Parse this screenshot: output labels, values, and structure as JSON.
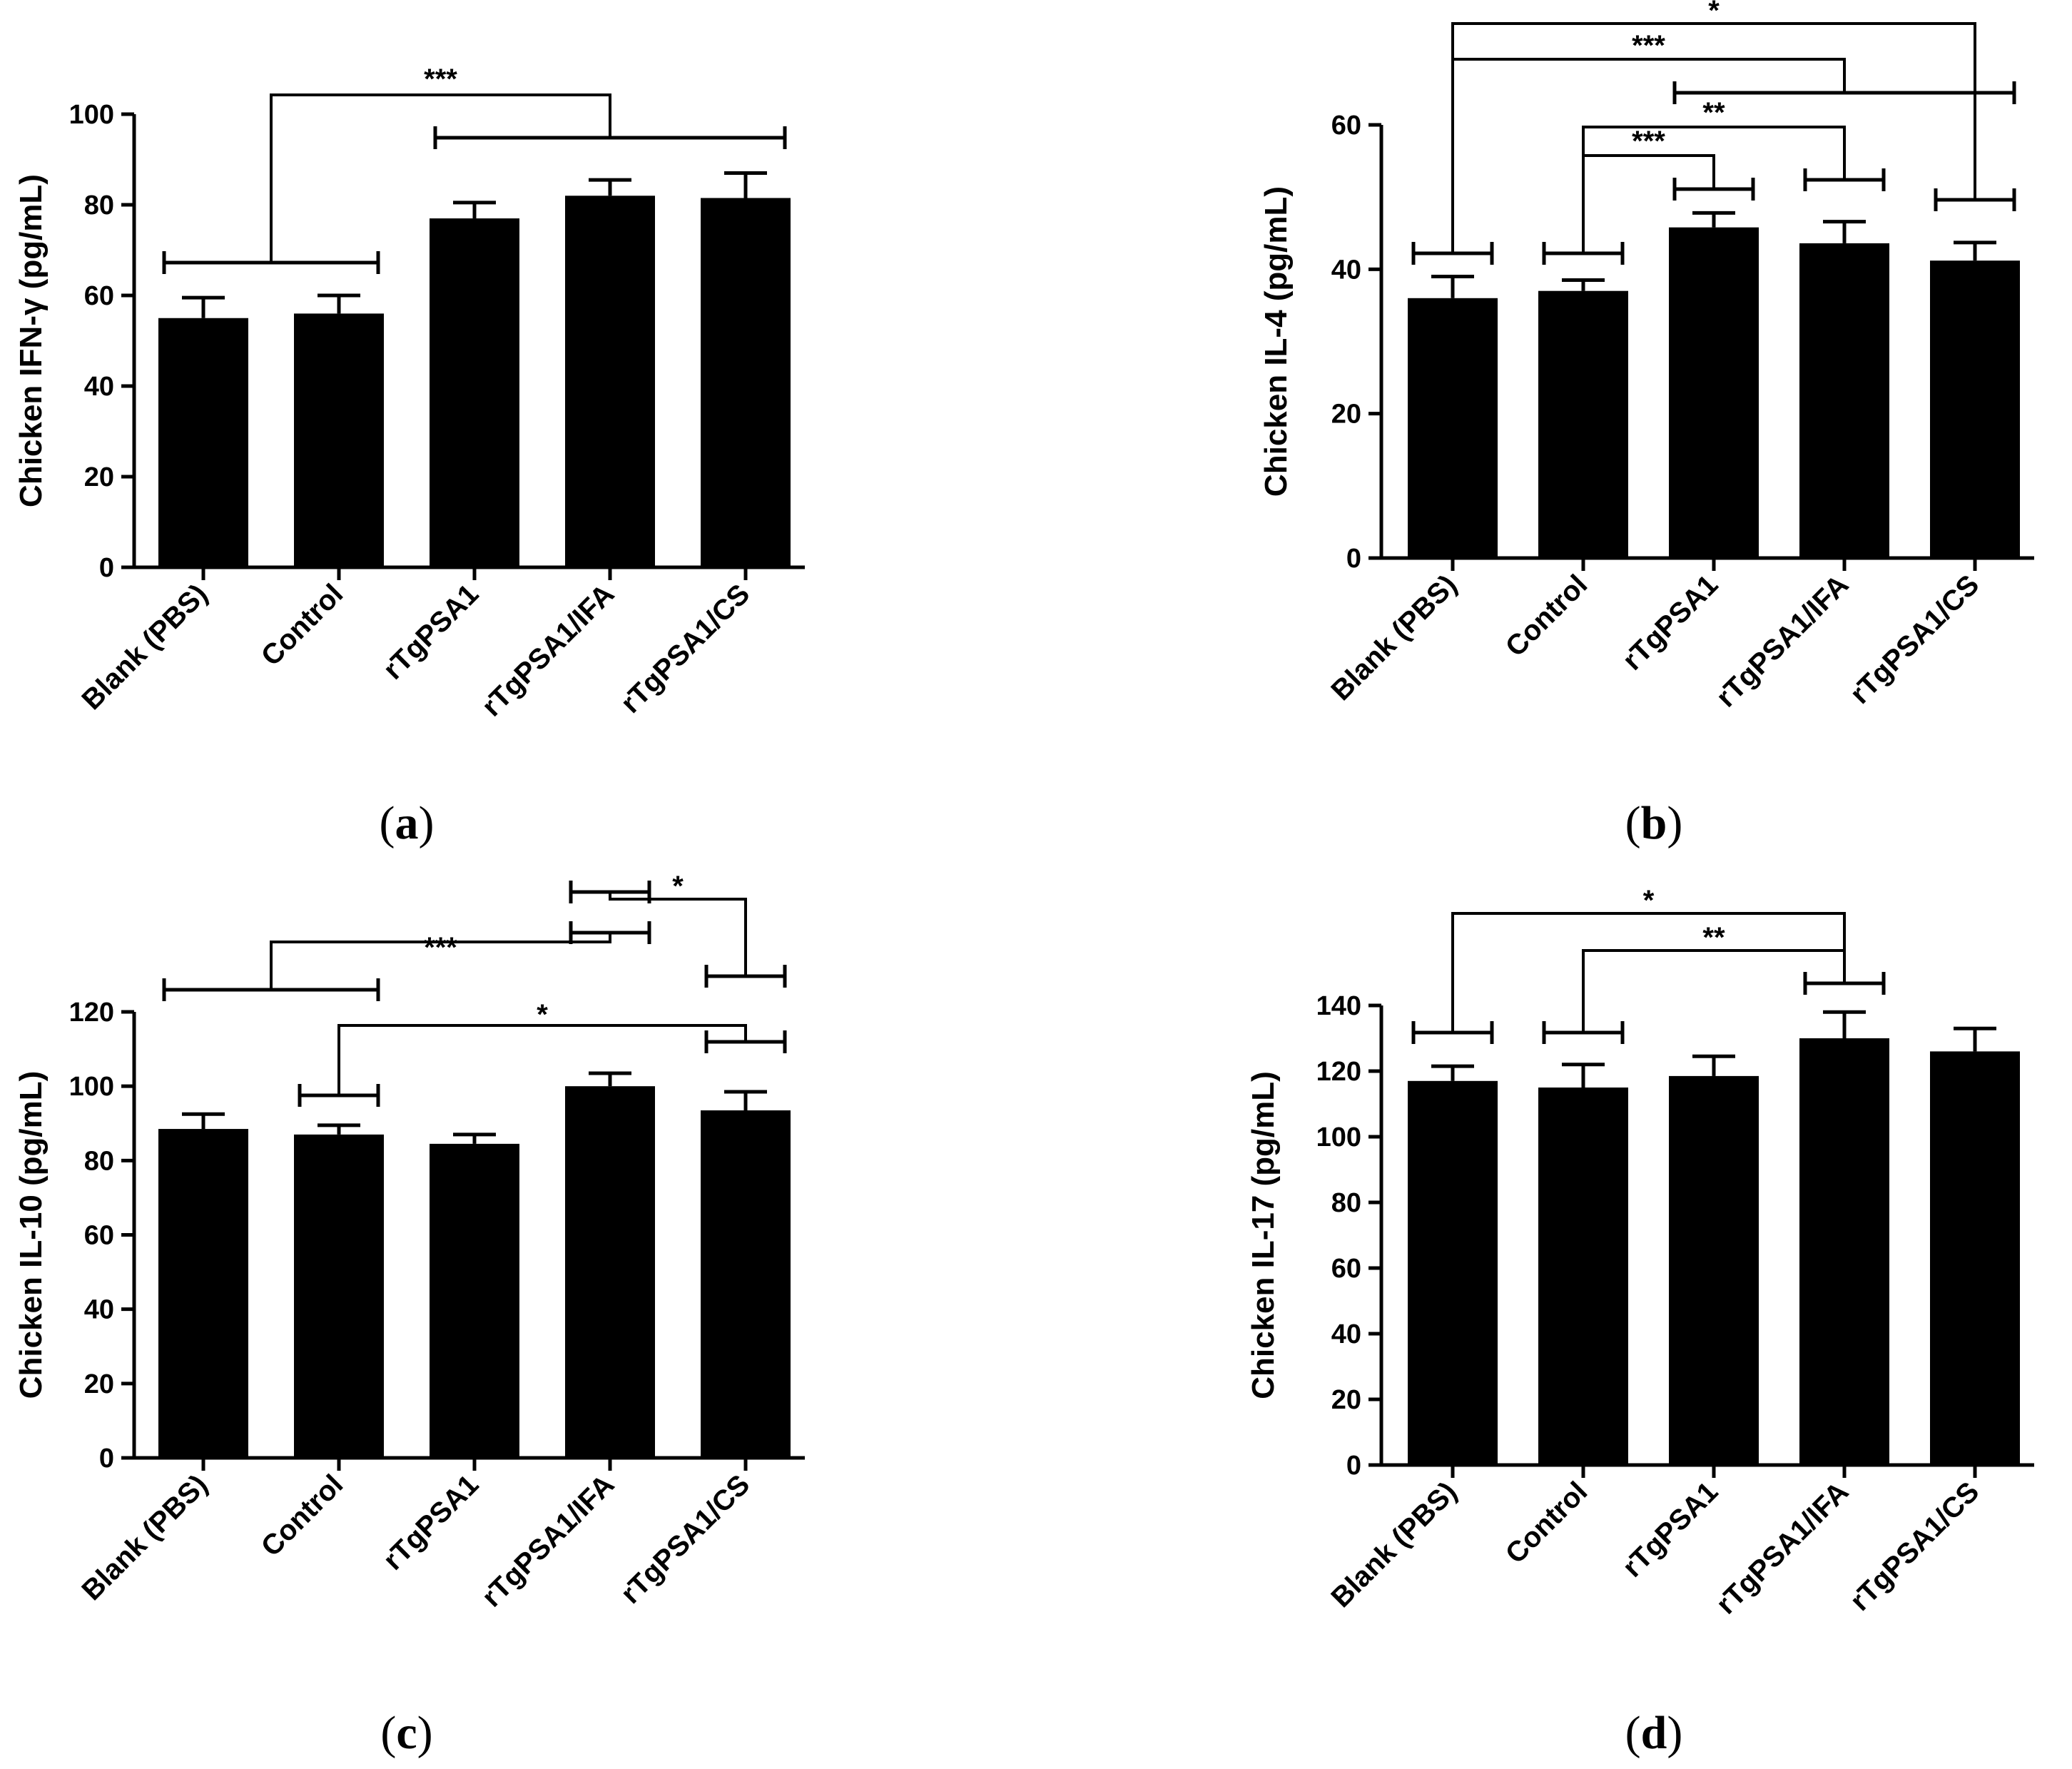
{
  "chart_data": [
    {
      "type": "bar",
      "panel_label": "a",
      "ylabel": "Chicken IFN-γ (pg/mL)",
      "ylim": [
        0,
        100
      ],
      "yticks": [
        0,
        20,
        40,
        60,
        80,
        100
      ],
      "categories": [
        "Blank (PBS)",
        "Control",
        "rTgPSA1",
        "rTgPSA1/IFA",
        "rTgPSA1/CS"
      ],
      "values": [
        55,
        56,
        77,
        82,
        81.5
      ],
      "errors": [
        4.5,
        4,
        3.5,
        3.5,
        5.5
      ],
      "significance": [
        {
          "label": "***",
          "group_a": [
            0,
            1
          ],
          "group_b": [
            2,
            4
          ]
        }
      ]
    },
    {
      "type": "bar",
      "panel_label": "b",
      "ylabel": "Chicken IL-4 (pg/mL)",
      "ylim": [
        0,
        60
      ],
      "yticks": [
        0,
        20,
        40,
        60
      ],
      "categories": [
        "Blank (PBS)",
        "Control",
        "rTgPSA1",
        "rTgPSA1/IFA",
        "rTgPSA1/CS"
      ],
      "values": [
        36,
        37,
        45.8,
        43.6,
        41.2
      ],
      "errors": [
        3,
        1.5,
        2,
        3,
        2.5
      ],
      "significance": [
        {
          "label": "*",
          "group_a": [
            0,
            0
          ],
          "group_b": [
            4,
            4
          ]
        },
        {
          "label": "***",
          "group_a": [
            0,
            0
          ],
          "group_b": [
            2,
            4
          ]
        },
        {
          "label": "**",
          "group_a": [
            1,
            1
          ],
          "group_b": [
            3,
            3
          ]
        },
        {
          "label": "***",
          "group_a": [
            1,
            1
          ],
          "group_b": [
            2,
            2
          ]
        }
      ]
    },
    {
      "type": "bar",
      "panel_label": "c",
      "ylabel": "Chicken IL-10 (pg/mL)",
      "ylim": [
        0,
        120
      ],
      "yticks": [
        0,
        20,
        40,
        60,
        80,
        100,
        120
      ],
      "categories": [
        "Blank (PBS)",
        "Control",
        "rTgPSA1",
        "rTgPSA1/IFA",
        "rTgPSA1/CS"
      ],
      "values": [
        88.5,
        87,
        84.5,
        100,
        93.5
      ],
      "errors": [
        4,
        2.5,
        2.5,
        3.5,
        5
      ],
      "significance": [
        {
          "label": "***",
          "group_a": [
            0,
            1
          ],
          "group_b": [
            3,
            3
          ]
        },
        {
          "label": "*",
          "group_a": [
            3,
            3
          ],
          "group_b": [
            4,
            4
          ]
        },
        {
          "label": "*",
          "group_a": [
            1,
            1
          ],
          "group_b": [
            4,
            4
          ]
        }
      ]
    },
    {
      "type": "bar",
      "panel_label": "d",
      "ylabel": "Chicken IL-17 (pg/mL)",
      "ylim": [
        0,
        140
      ],
      "yticks": [
        0,
        20,
        40,
        60,
        80,
        100,
        120,
        140
      ],
      "categories": [
        "Blank (PBS)",
        "Control",
        "rTgPSA1",
        "rTgPSA1/IFA",
        "rTgPSA1/CS"
      ],
      "values": [
        117,
        115,
        118.5,
        130,
        126
      ],
      "errors": [
        4.5,
        7,
        6,
        8,
        7
      ],
      "significance": [
        {
          "label": "*",
          "group_a": [
            0,
            0
          ],
          "group_b": [
            3,
            3
          ]
        },
        {
          "label": "**",
          "group_a": [
            1,
            1
          ],
          "group_b": [
            3,
            3
          ]
        }
      ]
    }
  ]
}
